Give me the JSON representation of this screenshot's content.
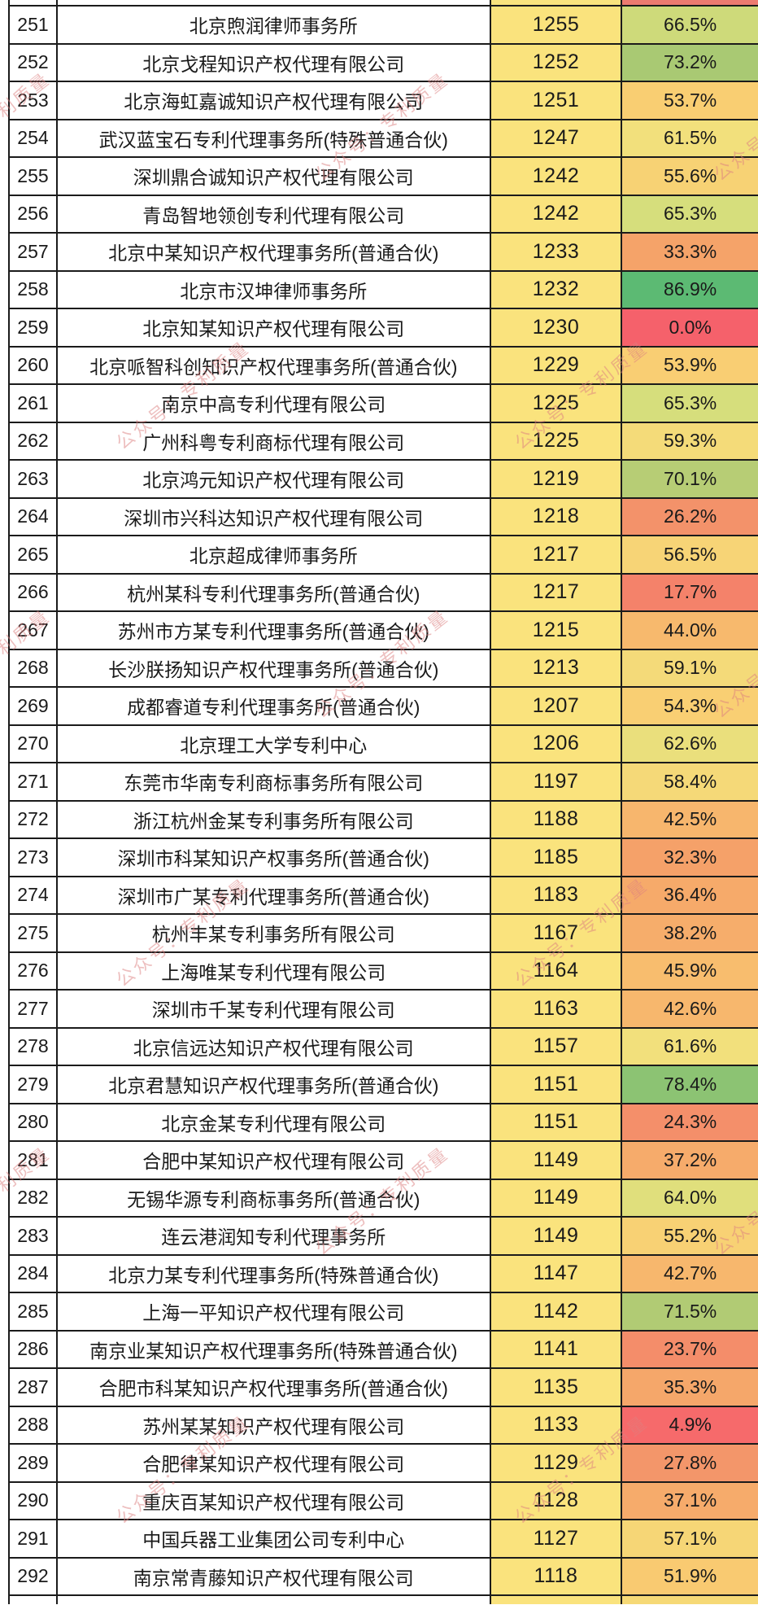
{
  "watermark": {
    "text": "公众号：专利质量",
    "color_hex": "#DD8080"
  },
  "styles": {
    "value_cell_bg": "#FAE37D",
    "border_color": "#1b1b1b",
    "text_color": "#1a1a1a",
    "row_bg": "#FFFFFF",
    "percent_scale_low": "#F8696B",
    "percent_scale_mid": "#FCE87E",
    "percent_scale_high": "#5CBA73"
  },
  "partial_rows": {
    "top": {
      "value_bg": "#F9E37E",
      "percent_bg": "#EC7A70"
    },
    "bottom": {
      "value_bg": "#FAE37D",
      "percent_bg": "#F6D976"
    }
  },
  "chart_data": {
    "type": "table",
    "columns": [
      "rank",
      "agency_name",
      "value",
      "percent"
    ],
    "rows": [
      {
        "rank": 251,
        "name": "北京煦润律师事务所",
        "value": 1255,
        "percent": 66.5,
        "percent_label": "66.5%",
        "percent_color": "#CEDA7A"
      },
      {
        "rank": 252,
        "name": "北京戈程知识产权代理有限公司",
        "value": 1252,
        "percent": 73.2,
        "percent_label": "73.2%",
        "percent_color": "#A9C973"
      },
      {
        "rank": 253,
        "name": "北京海虹嘉诚知识产权代理有限公司",
        "value": 1251,
        "percent": 53.7,
        "percent_label": "53.7%",
        "percent_color": "#F9CE72"
      },
      {
        "rank": 254,
        "name": "武汉蓝宝石专利代理事务所(特殊普通合伙)",
        "value": 1247,
        "percent": 61.5,
        "percent_label": "61.5%",
        "percent_color": "#F2E07C"
      },
      {
        "rank": 255,
        "name": "深圳鼎合诚知识产权代理有限公司",
        "value": 1242,
        "percent": 55.6,
        "percent_label": "55.6%",
        "percent_color": "#F7D274"
      },
      {
        "rank": 256,
        "name": "青岛智地领创专利代理有限公司",
        "value": 1242,
        "percent": 65.3,
        "percent_label": "65.3%",
        "percent_color": "#D6DE7C"
      },
      {
        "rank": 257,
        "name": "北京中某知识产权代理事务所(普通合伙)",
        "value": 1233,
        "percent": 33.3,
        "percent_label": "33.3%",
        "percent_color": "#F5A369"
      },
      {
        "rank": 258,
        "name": "北京市汉坤律师事务所",
        "value": 1232,
        "percent": 86.9,
        "percent_label": "86.9%",
        "percent_color": "#5CBA73"
      },
      {
        "rank": 259,
        "name": "北京知某知识产权代理有限公司",
        "value": 1230,
        "percent": 0.0,
        "percent_label": "0.0%",
        "percent_color": "#F5616B"
      },
      {
        "rank": 260,
        "name": "北京哌智科创知识产权代理事务所(普通合伙)",
        "value": 1229,
        "percent": 53.9,
        "percent_label": "53.9%",
        "percent_color": "#F9CE73"
      },
      {
        "rank": 261,
        "name": "南京中高专利代理有限公司",
        "value": 1225,
        "percent": 65.3,
        "percent_label": "65.3%",
        "percent_color": "#D6DE7C"
      },
      {
        "rank": 262,
        "name": "广州科粤专利商标代理有限公司",
        "value": 1225,
        "percent": 59.3,
        "percent_label": "59.3%",
        "percent_color": "#F4DB79"
      },
      {
        "rank": 263,
        "name": "北京鸿元知识产权代理有限公司",
        "value": 1219,
        "percent": 70.1,
        "percent_label": "70.1%",
        "percent_color": "#B7CD75"
      },
      {
        "rank": 264,
        "name": "深圳市兴科达知识产权代理有限公司",
        "value": 1218,
        "percent": 26.2,
        "percent_label": "26.2%",
        "percent_color": "#F3926A"
      },
      {
        "rank": 265,
        "name": "北京超成律师事务所",
        "value": 1217,
        "percent": 56.5,
        "percent_label": "56.5%",
        "percent_color": "#F7D476"
      },
      {
        "rank": 266,
        "name": "杭州某科专利代理事务所(普通合伙)",
        "value": 1217,
        "percent": 17.7,
        "percent_label": "17.7%",
        "percent_color": "#F4826A"
      },
      {
        "rank": 267,
        "name": "苏州市方某专利代理事务所(普通合伙)",
        "value": 1215,
        "percent": 44.0,
        "percent_label": "44.0%",
        "percent_color": "#F7B96D"
      },
      {
        "rank": 268,
        "name": "长沙朕扬知识产权代理事务所(普通合伙)",
        "value": 1213,
        "percent": 59.1,
        "percent_label": "59.1%",
        "percent_color": "#F4DA79"
      },
      {
        "rank": 269,
        "name": "成都睿道专利代理事务所(普通合伙)",
        "value": 1207,
        "percent": 54.3,
        "percent_label": "54.3%",
        "percent_color": "#F9CF73"
      },
      {
        "rank": 270,
        "name": "北京理工大学专利中心",
        "value": 1206,
        "percent": 62.6,
        "percent_label": "62.6%",
        "percent_color": "#EADF7C"
      },
      {
        "rank": 271,
        "name": "东莞市华南专利商标事务所有限公司",
        "value": 1197,
        "percent": 58.4,
        "percent_label": "58.4%",
        "percent_color": "#F5D978"
      },
      {
        "rank": 272,
        "name": "浙江杭州金某专利事务所有限公司",
        "value": 1188,
        "percent": 42.5,
        "percent_label": "42.5%",
        "percent_color": "#F7B66D"
      },
      {
        "rank": 273,
        "name": "深圳市科某知识产权事务所(普通合伙)",
        "value": 1185,
        "percent": 32.3,
        "percent_label": "32.3%",
        "percent_color": "#F5A169"
      },
      {
        "rank": 274,
        "name": "深圳市广某专利代理事务所(普通合伙)",
        "value": 1183,
        "percent": 36.4,
        "percent_label": "36.4%",
        "percent_color": "#F6AA6A"
      },
      {
        "rank": 275,
        "name": "杭州丰某专利事务所有限公司",
        "value": 1167,
        "percent": 38.2,
        "percent_label": "38.2%",
        "percent_color": "#F6AD6B"
      },
      {
        "rank": 276,
        "name": "上海唯某专利代理有限公司",
        "value": 1164,
        "percent": 45.9,
        "percent_label": "45.9%",
        "percent_color": "#F8BD6E"
      },
      {
        "rank": 277,
        "name": "深圳市千某专利代理有限公司",
        "value": 1163,
        "percent": 42.6,
        "percent_label": "42.6%",
        "percent_color": "#F7B76D"
      },
      {
        "rank": 278,
        "name": "北京信远达知识产权代理有限公司",
        "value": 1157,
        "percent": 61.6,
        "percent_label": "61.6%",
        "percent_color": "#F2E07C"
      },
      {
        "rank": 279,
        "name": "北京君慧知识产权代理事务所(普通合伙)",
        "value": 1151,
        "percent": 78.4,
        "percent_label": "78.4%",
        "percent_color": "#8CC373"
      },
      {
        "rank": 280,
        "name": "北京金某专利代理有限公司",
        "value": 1151,
        "percent": 24.3,
        "percent_label": "24.3%",
        "percent_color": "#F48F6A"
      },
      {
        "rank": 281,
        "name": "合肥中某知识产权代理有限公司",
        "value": 1149,
        "percent": 37.2,
        "percent_label": "37.2%",
        "percent_color": "#F6AB6B"
      },
      {
        "rank": 282,
        "name": "无锡华源专利商标事务所(普通合伙)",
        "value": 1149,
        "percent": 64.0,
        "percent_label": "64.0%",
        "percent_color": "#E0DF7C"
      },
      {
        "rank": 283,
        "name": "连云港润知专利代理事务所",
        "value": 1149,
        "percent": 55.2,
        "percent_label": "55.2%",
        "percent_color": "#F8D174"
      },
      {
        "rank": 284,
        "name": "北京力某专利代理事务所(特殊普通合伙)",
        "value": 1147,
        "percent": 42.7,
        "percent_label": "42.7%",
        "percent_color": "#F7B76D"
      },
      {
        "rank": 285,
        "name": "上海一平知识产权代理有限公司",
        "value": 1142,
        "percent": 71.5,
        "percent_label": "71.5%",
        "percent_color": "#B1CB74"
      },
      {
        "rank": 286,
        "name": "南京业某知识产权代理事务所(特殊普通合伙)",
        "value": 1141,
        "percent": 23.7,
        "percent_label": "23.7%",
        "percent_color": "#F48D6A"
      },
      {
        "rank": 287,
        "name": "合肥市科某知识产权代理事务所(普通合伙)",
        "value": 1135,
        "percent": 35.3,
        "percent_label": "35.3%",
        "percent_color": "#F5A76A"
      },
      {
        "rank": 288,
        "name": "苏州某某知识产权代理有限公司",
        "value": 1133,
        "percent": 4.9,
        "percent_label": "4.9%",
        "percent_color": "#F66A6B"
      },
      {
        "rank": 289,
        "name": "合肥律某知识产权代理有限公司",
        "value": 1129,
        "percent": 27.8,
        "percent_label": "27.8%",
        "percent_color": "#F3966A"
      },
      {
        "rank": 290,
        "name": "重庆百某知识产权代理有限公司",
        "value": 1128,
        "percent": 37.1,
        "percent_label": "37.1%",
        "percent_color": "#F6AB6B"
      },
      {
        "rank": 291,
        "name": "中国兵器工业集团公司专利中心",
        "value": 1127,
        "percent": 57.1,
        "percent_label": "57.1%",
        "percent_color": "#F6D676"
      },
      {
        "rank": 292,
        "name": "南京常青藤知识产权代理有限公司",
        "value": 1118,
        "percent": 51.9,
        "percent_label": "51.9%",
        "percent_color": "#F9CA71"
      }
    ]
  }
}
